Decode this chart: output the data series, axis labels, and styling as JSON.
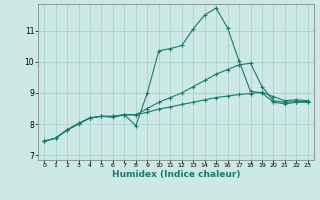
{
  "xlabel": "Humidex (Indice chaleur)",
  "background_color": "#cce9e5",
  "grid_color": "#aad4cf",
  "line_color": "#1a7a6e",
  "xlim": [
    -0.5,
    23.5
  ],
  "ylim": [
    6.85,
    11.85
  ],
  "yticks": [
    7,
    8,
    9,
    10,
    11
  ],
  "xticks": [
    0,
    1,
    2,
    3,
    4,
    5,
    6,
    7,
    8,
    9,
    10,
    11,
    12,
    13,
    14,
    15,
    16,
    17,
    18,
    19,
    20,
    21,
    22,
    23
  ],
  "series": [
    [
      7.45,
      7.55,
      7.8,
      8.0,
      8.2,
      8.25,
      8.22,
      8.3,
      7.95,
      9.0,
      10.35,
      10.42,
      10.52,
      11.05,
      11.5,
      11.72,
      11.08,
      10.02,
      9.05,
      9.0,
      8.7,
      8.65,
      8.7,
      8.7
    ],
    [
      7.45,
      7.55,
      7.82,
      8.02,
      8.2,
      8.25,
      8.25,
      8.3,
      8.3,
      8.5,
      8.7,
      8.85,
      9.0,
      9.2,
      9.4,
      9.6,
      9.75,
      9.9,
      9.95,
      9.2,
      8.75,
      8.7,
      8.72,
      8.72
    ],
    [
      7.45,
      7.55,
      7.82,
      8.02,
      8.2,
      8.25,
      8.25,
      8.3,
      8.3,
      8.38,
      8.48,
      8.55,
      8.63,
      8.7,
      8.78,
      8.85,
      8.9,
      8.95,
      8.98,
      9.02,
      8.88,
      8.75,
      8.78,
      8.75
    ]
  ]
}
